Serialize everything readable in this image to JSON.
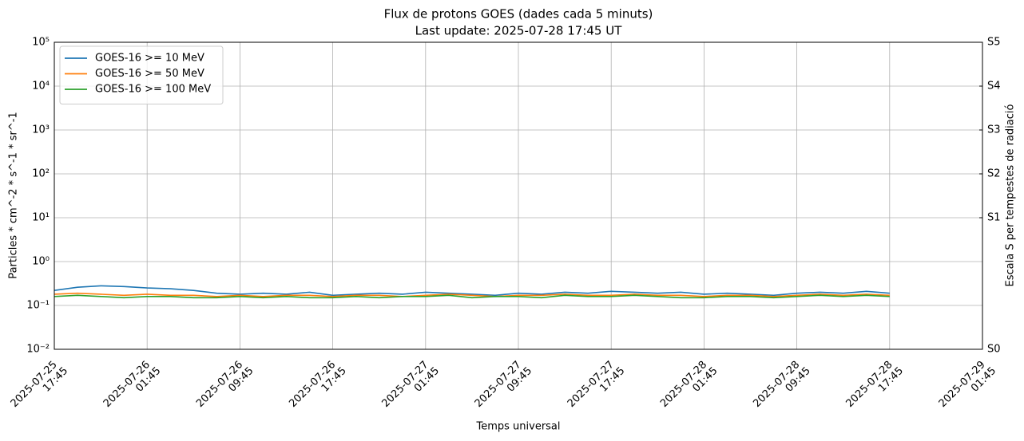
{
  "chart_data": {
    "type": "line",
    "title": "Flux de protons GOES (dades cada 5 minuts)",
    "subtitle": "Last update: 2025-07-28 17:45 UT",
    "x_label": "Temps universal",
    "y_label": "Particles * cm^-2 * s^-1 * sr^-1",
    "y2_label": "Escala S per tempestes de radiació",
    "x": [
      "2025-07-25 17:45",
      "2025-07-25 19:45",
      "2025-07-25 21:45",
      "2025-07-25 23:45",
      "2025-07-26 01:45",
      "2025-07-26 03:45",
      "2025-07-26 05:45",
      "2025-07-26 07:45",
      "2025-07-26 09:45",
      "2025-07-26 11:45",
      "2025-07-26 13:45",
      "2025-07-26 15:45",
      "2025-07-26 17:45",
      "2025-07-26 19:45",
      "2025-07-26 21:45",
      "2025-07-26 23:45",
      "2025-07-27 01:45",
      "2025-07-27 03:45",
      "2025-07-27 05:45",
      "2025-07-27 07:45",
      "2025-07-27 09:45",
      "2025-07-27 11:45",
      "2025-07-27 13:45",
      "2025-07-27 15:45",
      "2025-07-27 17:45",
      "2025-07-27 19:45",
      "2025-07-27 21:45",
      "2025-07-27 23:45",
      "2025-07-28 01:45",
      "2025-07-28 03:45",
      "2025-07-28 05:45",
      "2025-07-28 07:45",
      "2025-07-28 09:45",
      "2025-07-28 11:45",
      "2025-07-28 13:45",
      "2025-07-28 15:45",
      "2025-07-28 17:45"
    ],
    "series": [
      {
        "name": "GOES-16 >= 10 MeV",
        "color": "#1f77b4",
        "values": [
          0.22,
          0.26,
          0.28,
          0.27,
          0.25,
          0.24,
          0.22,
          0.19,
          0.18,
          0.19,
          0.18,
          0.2,
          0.17,
          0.18,
          0.19,
          0.18,
          0.2,
          0.19,
          0.18,
          0.17,
          0.19,
          0.18,
          0.2,
          0.19,
          0.21,
          0.2,
          0.19,
          0.2,
          0.18,
          0.19,
          0.18,
          0.17,
          0.19,
          0.2,
          0.19,
          0.21,
          0.19
        ]
      },
      {
        "name": "GOES-16 >= 50 MeV",
        "color": "#ff7f0e",
        "values": [
          0.18,
          0.19,
          0.18,
          0.17,
          0.18,
          0.17,
          0.17,
          0.16,
          0.17,
          0.16,
          0.17,
          0.17,
          0.16,
          0.17,
          0.17,
          0.16,
          0.17,
          0.18,
          0.17,
          0.16,
          0.17,
          0.17,
          0.18,
          0.17,
          0.17,
          0.18,
          0.17,
          0.17,
          0.16,
          0.17,
          0.17,
          0.16,
          0.17,
          0.18,
          0.17,
          0.18,
          0.17
        ]
      },
      {
        "name": "GOES-16 >= 100 MeV",
        "color": "#2ca02c",
        "values": [
          0.16,
          0.17,
          0.16,
          0.15,
          0.16,
          0.16,
          0.15,
          0.15,
          0.16,
          0.15,
          0.16,
          0.15,
          0.15,
          0.16,
          0.15,
          0.16,
          0.16,
          0.17,
          0.15,
          0.16,
          0.16,
          0.15,
          0.17,
          0.16,
          0.16,
          0.17,
          0.16,
          0.15,
          0.15,
          0.16,
          0.16,
          0.15,
          0.16,
          0.17,
          0.16,
          0.17,
          0.16
        ]
      }
    ],
    "xlim": [
      "2025-07-25 17:45",
      "2025-07-29 01:45"
    ],
    "xticks": [
      "2025-07-25 17:45",
      "2025-07-26 01:45",
      "2025-07-26 09:45",
      "2025-07-26 17:45",
      "2025-07-27 01:45",
      "2025-07-27 09:45",
      "2025-07-27 17:45",
      "2025-07-28 01:45",
      "2025-07-28 09:45",
      "2025-07-28 17:45",
      "2025-07-29 01:45"
    ],
    "y_scale": "log",
    "ylim": [
      0.01,
      100000
    ],
    "yticks": [
      {
        "value": 0.01,
        "label": "10⁻²"
      },
      {
        "value": 0.1,
        "label": "10⁻¹"
      },
      {
        "value": 1,
        "label": "10⁰"
      },
      {
        "value": 10,
        "label": "10¹"
      },
      {
        "value": 100,
        "label": "10²"
      },
      {
        "value": 1000,
        "label": "10³"
      },
      {
        "value": 10000,
        "label": "10⁴"
      },
      {
        "value": 100000,
        "label": "10⁵"
      }
    ],
    "y2lim": [
      0.01,
      100000
    ],
    "y2ticks": [
      {
        "value": 0.01,
        "label": "S0"
      },
      {
        "value": 10,
        "label": "S1"
      },
      {
        "value": 100,
        "label": "S2"
      },
      {
        "value": 1000,
        "label": "S3"
      },
      {
        "value": 10000,
        "label": "S4"
      },
      {
        "value": 100000,
        "label": "S5"
      }
    ],
    "grid": true,
    "legend": "upper left"
  }
}
